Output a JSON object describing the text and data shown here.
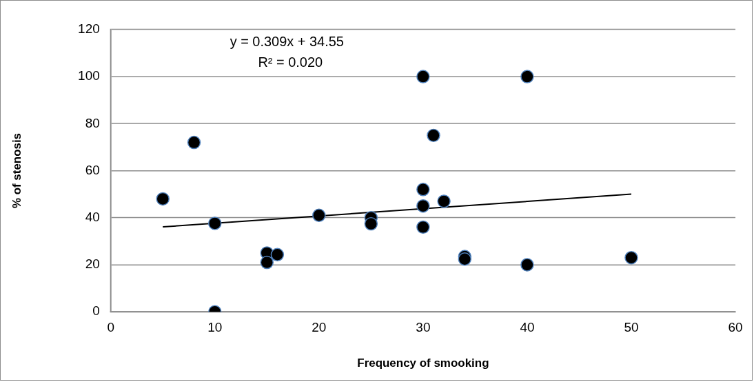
{
  "chart_data": {
    "type": "scatter",
    "xlabel": "Frequency of smooking",
    "ylabel": "% of stenosis",
    "annotations": [
      "y = 0.309x + 34.55",
      "R² = 0.020"
    ],
    "series": [
      {
        "color": "#000000",
        "marker": "circle",
        "x": [
          5,
          8,
          10,
          10,
          15,
          15,
          16,
          20,
          25,
          25,
          30,
          40,
          31,
          30,
          30,
          32,
          30,
          34,
          34,
          40,
          50
        ],
        "values": [
          48,
          72,
          37.6,
          0,
          25,
          21,
          24.3,
          41,
          40,
          37.4,
          100,
          100,
          75,
          52,
          45,
          47,
          36,
          23.5,
          22.4,
          20,
          23
        ]
      },
      {
        "type": "line",
        "color": "#000000",
        "x": [
          5,
          50
        ],
        "values": [
          36.1,
          50
        ]
      }
    ],
    "xlim": [
      0,
      60
    ],
    "xticks": [
      0,
      10,
      20,
      30,
      40,
      50,
      60
    ],
    "ylim": [
      0,
      120
    ],
    "yticks": [
      0,
      20,
      40,
      60,
      80,
      100,
      120
    ],
    "grid": "y",
    "legend": false
  }
}
